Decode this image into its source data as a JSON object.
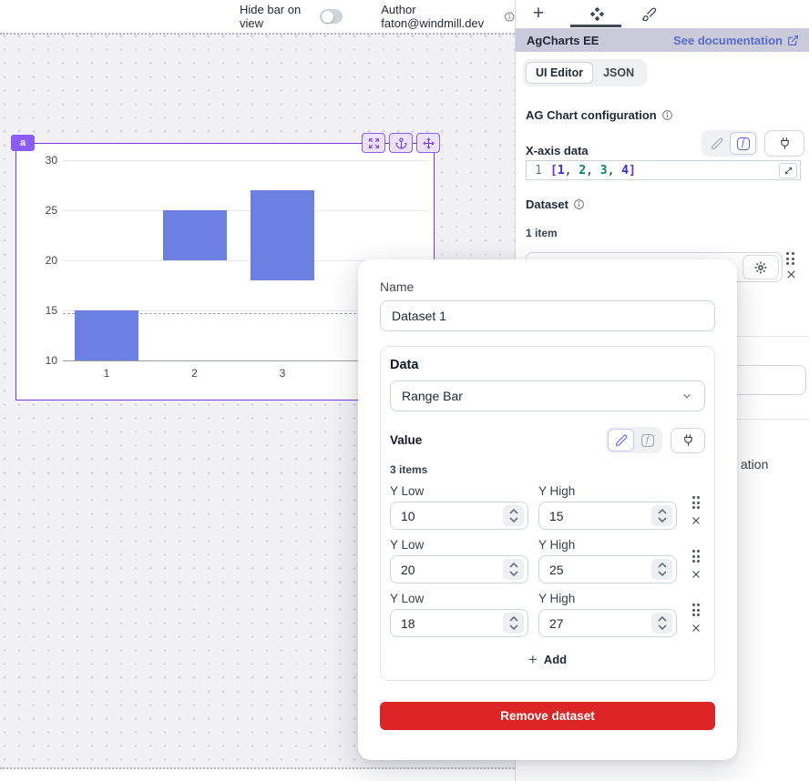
{
  "topbar": {
    "hide_bar_label": "Hide bar on view",
    "author": "Author faton@windmill.dev"
  },
  "canvas": {
    "component_badge": "a"
  },
  "chart_data": {
    "type": "bar",
    "subtype": "range-bar",
    "x": [
      1,
      2,
      3,
      4
    ],
    "series": [
      {
        "name": "Dataset 1",
        "ranges": [
          {
            "x": 1,
            "low": 10,
            "high": 15
          },
          {
            "x": 2,
            "low": 20,
            "high": 25
          },
          {
            "x": 3,
            "low": 18,
            "high": 27
          }
        ]
      }
    ],
    "y_ticks": [
      30,
      25,
      20,
      15,
      10
    ],
    "ylim": [
      10,
      30
    ],
    "bar_color": "#6b80e0",
    "dashed_ref_y": 14.7,
    "grid": true
  },
  "panel": {
    "header": {
      "title": "AgCharts EE",
      "doc_link": "See documentation"
    },
    "view_tabs": {
      "ui_editor": "UI Editor",
      "json": "JSON"
    },
    "config_title": "AG Chart configuration",
    "xaxis": {
      "label": "X-axis data",
      "editor": {
        "line_number": "1",
        "bracket_open": "[",
        "n1": "1",
        "c1": ", ",
        "n2": "2",
        "c2": ", ",
        "n3": "3",
        "c3": ", ",
        "n4": "4",
        "bracket_close": "]"
      }
    },
    "dataset": {
      "label": "Dataset",
      "count": "1 item"
    },
    "clipped_text": "ation"
  },
  "modal": {
    "name_label": "Name",
    "name_value": "Dataset 1",
    "data_section": {
      "title": "Data",
      "type_value": "Range Bar",
      "value_label": "Value",
      "items_count": "3 items",
      "rows": [
        {
          "low_label": "Y Low",
          "high_label": "Y High",
          "low": "10",
          "high": "15"
        },
        {
          "low_label": "Y Low",
          "high_label": "Y High",
          "low": "20",
          "high": "25"
        },
        {
          "low_label": "Y Low",
          "high_label": "Y High",
          "low": "18",
          "high": "27"
        }
      ],
      "add_label": "Add"
    },
    "remove_label": "Remove dataset"
  },
  "colors": {
    "accent_purple": "#7c3aed",
    "bar": "#6b80e0",
    "danger": "#dc2626",
    "link": "#5a6ac8",
    "header_bg": "#c9cbdb"
  }
}
